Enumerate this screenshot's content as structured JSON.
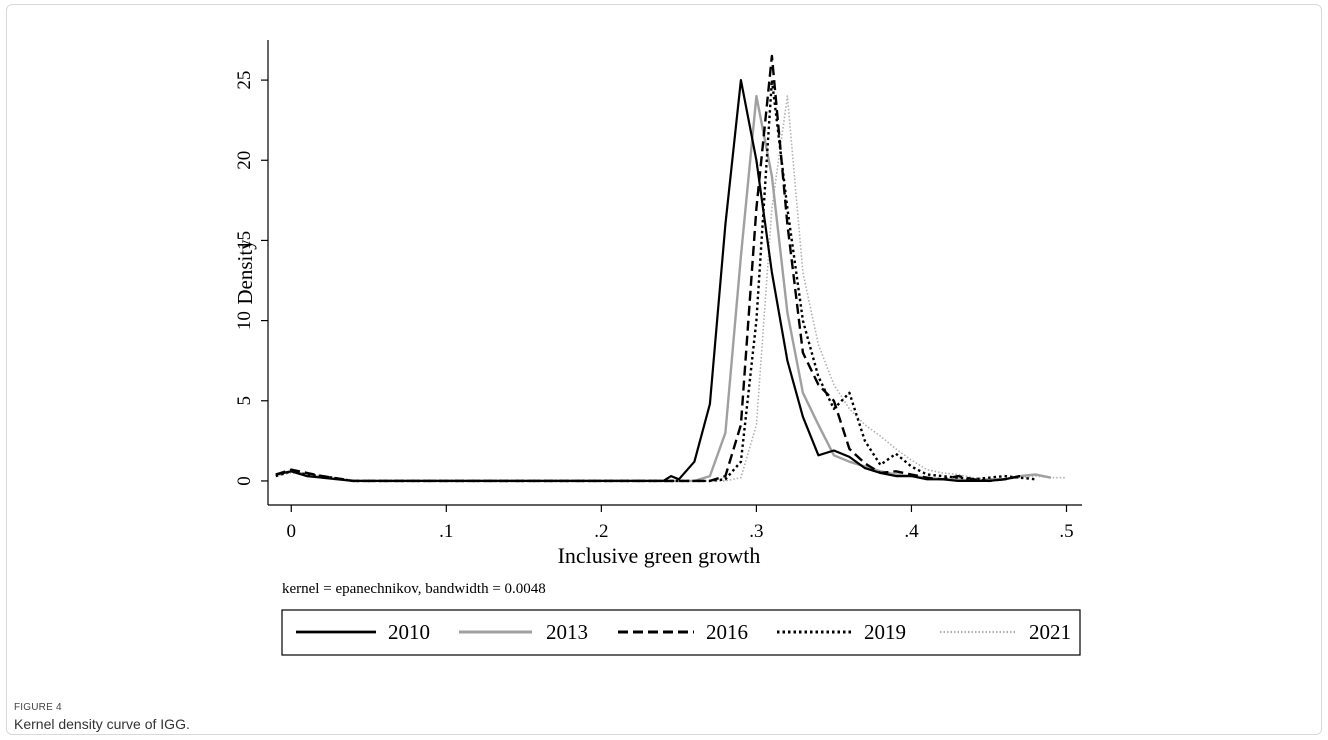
{
  "figure": {
    "label": "FIGURE 4",
    "caption": "Kernel density curve of IGG."
  },
  "chart_data": {
    "type": "line",
    "title": "",
    "xlabel": "Inclusive green growth",
    "ylabel": "Density",
    "note": "kernel = epanechnikov, bandwidth = 0.0048",
    "xlim": [
      -0.015,
      0.51
    ],
    "ylim": [
      -1.5,
      27.5
    ],
    "xticks": [
      0,
      0.1,
      0.2,
      0.3,
      0.4,
      0.5
    ],
    "xtick_labels": [
      "0",
      ".1",
      ".2",
      ".3",
      ".4",
      ".5"
    ],
    "yticks": [
      0,
      5,
      10,
      15,
      20,
      25
    ],
    "ytick_labels": [
      "0",
      "5",
      "10",
      "15",
      "20",
      "25"
    ],
    "grid": false,
    "legend_position": "bottom",
    "colors": {
      "2010": "#000000",
      "2013": "#a0a0a0",
      "2016": "#000000",
      "2019": "#000000",
      "2021": "#b0b0b0"
    },
    "series": [
      {
        "name": "2010",
        "x": [
          -0.01,
          0,
          0.01,
          0.02,
          0.04,
          0.1,
          0.2,
          0.24,
          0.245,
          0.25,
          0.26,
          0.27,
          0.28,
          0.29,
          0.3,
          0.31,
          0.32,
          0.33,
          0.34,
          0.35,
          0.36,
          0.37,
          0.38,
          0.39,
          0.4,
          0.41,
          0.42,
          0.43,
          0.44,
          0.45,
          0.46,
          0.47
        ],
        "values": [
          0.4,
          0.6,
          0.3,
          0.2,
          0.0,
          0.0,
          0.0,
          0.0,
          0.3,
          0.1,
          1.2,
          4.8,
          16.0,
          25.0,
          20.0,
          13.0,
          7.5,
          4.0,
          1.6,
          1.9,
          1.5,
          0.8,
          0.5,
          0.3,
          0.3,
          0.1,
          0.1,
          0.0,
          0.0,
          0.0,
          0.1,
          0.3
        ]
      },
      {
        "name": "2013",
        "x": [
          -0.01,
          0,
          0.01,
          0.02,
          0.04,
          0.1,
          0.2,
          0.26,
          0.27,
          0.28,
          0.29,
          0.3,
          0.31,
          0.32,
          0.33,
          0.34,
          0.35,
          0.36,
          0.37,
          0.38,
          0.39,
          0.4,
          0.41,
          0.42,
          0.43,
          0.44,
          0.45,
          0.46,
          0.47,
          0.48,
          0.49
        ],
        "values": [
          0.4,
          0.6,
          0.4,
          0.2,
          0.0,
          0.0,
          0.0,
          0.0,
          0.3,
          3.0,
          14.0,
          24.0,
          19.0,
          10.5,
          5.5,
          3.5,
          1.6,
          1.2,
          0.9,
          0.6,
          0.4,
          0.3,
          0.2,
          0.1,
          0.1,
          0.0,
          0.1,
          0.1,
          0.3,
          0.4,
          0.2
        ]
      },
      {
        "name": "2016",
        "x": [
          -0.01,
          0,
          0.01,
          0.02,
          0.04,
          0.1,
          0.2,
          0.26,
          0.27,
          0.28,
          0.29,
          0.3,
          0.31,
          0.32,
          0.33,
          0.34,
          0.35,
          0.36,
          0.37,
          0.38,
          0.39,
          0.4,
          0.41,
          0.42,
          0.43,
          0.44,
          0.45,
          0.46,
          0.47
        ],
        "values": [
          0.4,
          0.7,
          0.5,
          0.3,
          0.0,
          0.0,
          0.0,
          0.0,
          0.0,
          0.3,
          3.5,
          17.0,
          26.5,
          16.0,
          8.0,
          6.0,
          5.0,
          2.0,
          1.1,
          0.5,
          0.6,
          0.4,
          0.2,
          0.1,
          0.3,
          0.1,
          0.0,
          0.1,
          0.3
        ]
      },
      {
        "name": "2019",
        "x": [
          -0.01,
          0,
          0.01,
          0.02,
          0.04,
          0.1,
          0.2,
          0.27,
          0.28,
          0.29,
          0.3,
          0.31,
          0.32,
          0.33,
          0.34,
          0.35,
          0.36,
          0.37,
          0.38,
          0.39,
          0.4,
          0.41,
          0.42,
          0.43,
          0.44,
          0.45,
          0.46,
          0.47,
          0.48
        ],
        "values": [
          0.3,
          0.6,
          0.4,
          0.3,
          0.0,
          0.0,
          0.0,
          0.0,
          0.1,
          1.2,
          10.0,
          25.0,
          17.0,
          10.0,
          6.5,
          4.5,
          5.5,
          2.5,
          1.0,
          1.7,
          0.9,
          0.4,
          0.3,
          0.2,
          0.1,
          0.2,
          0.3,
          0.2,
          0.1
        ]
      },
      {
        "name": "2021",
        "x": [
          -0.01,
          0,
          0.01,
          0.02,
          0.04,
          0.1,
          0.2,
          0.27,
          0.28,
          0.29,
          0.3,
          0.31,
          0.32,
          0.33,
          0.34,
          0.35,
          0.36,
          0.37,
          0.38,
          0.39,
          0.4,
          0.41,
          0.42,
          0.43,
          0.44,
          0.45,
          0.46,
          0.47,
          0.48,
          0.49,
          0.5
        ],
        "values": [
          0.3,
          0.5,
          0.4,
          0.3,
          0.0,
          0.0,
          0.0,
          0.0,
          0.0,
          0.2,
          3.5,
          17.0,
          24.0,
          13.0,
          8.5,
          6.0,
          4.5,
          3.5,
          2.8,
          2.0,
          1.3,
          0.7,
          0.5,
          0.4,
          0.2,
          0.1,
          0.1,
          0.2,
          0.3,
          0.2,
          0.2
        ]
      }
    ]
  }
}
